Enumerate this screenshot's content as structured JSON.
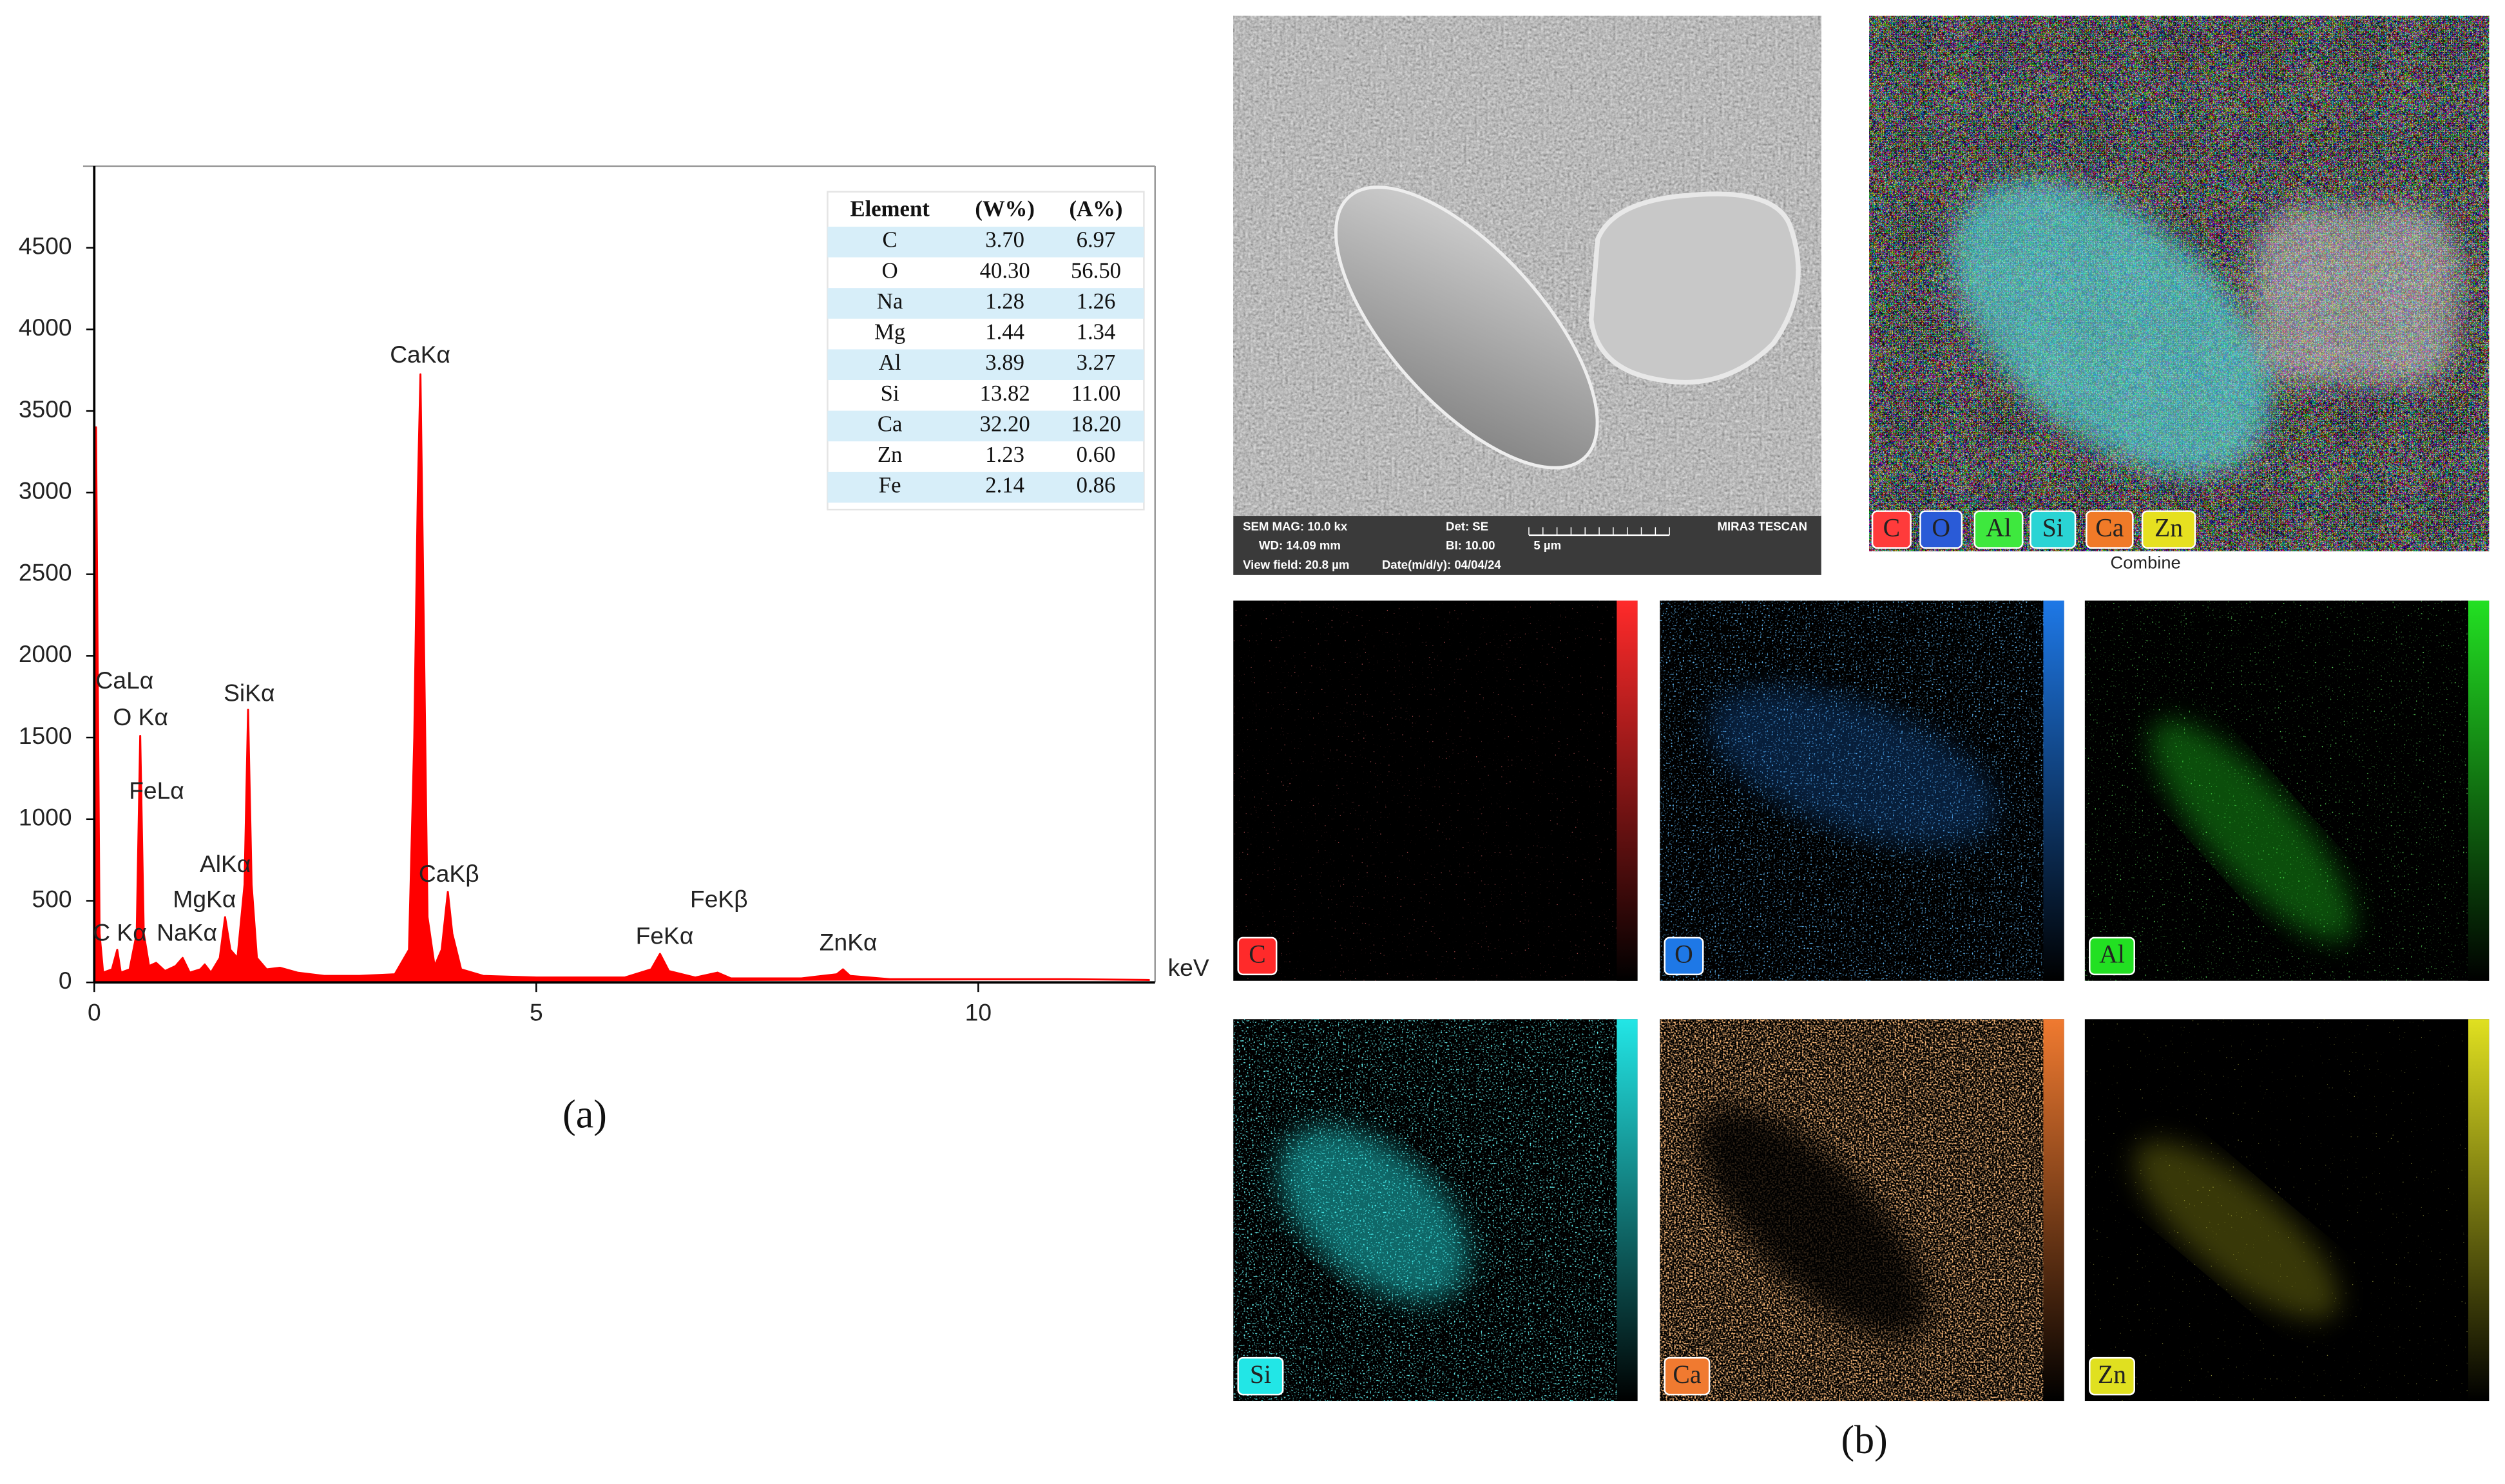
{
  "chart_data": {
    "type": "line",
    "xlabel": "keV",
    "xlim": [
      0,
      12
    ],
    "ylim": [
      0,
      5000
    ],
    "xticks": [
      0,
      5,
      10
    ],
    "yticks": [
      0,
      500,
      1000,
      1500,
      2000,
      2500,
      3000,
      3500,
      4000,
      4500
    ],
    "color": "#ff0000",
    "x": [
      0,
      0.02,
      0.06,
      0.1,
      0.2,
      0.26,
      0.3,
      0.4,
      0.48,
      0.52,
      0.56,
      0.62,
      0.7,
      0.8,
      0.92,
      1.0,
      1.08,
      1.2,
      1.25,
      1.32,
      1.42,
      1.48,
      1.54,
      1.62,
      1.7,
      1.74,
      1.78,
      1.84,
      1.95,
      2.1,
      2.3,
      2.6,
      3.0,
      3.4,
      3.56,
      3.62,
      3.66,
      3.69,
      3.72,
      3.77,
      3.85,
      3.93,
      4.0,
      4.05,
      4.15,
      4.4,
      5.0,
      5.5,
      6.0,
      6.3,
      6.4,
      6.5,
      6.8,
      7.05,
      7.2,
      8.0,
      8.4,
      8.47,
      8.55,
      9.0,
      10.0,
      11.0,
      11.94
    ],
    "values": [
      0,
      3400,
      300,
      60,
      80,
      200,
      60,
      80,
      300,
      1510,
      300,
      100,
      120,
      70,
      100,
      150,
      60,
      80,
      110,
      60,
      150,
      400,
      200,
      150,
      600,
      1670,
      600,
      150,
      80,
      90,
      60,
      40,
      40,
      50,
      200,
      1500,
      3000,
      3725,
      2500,
      400,
      100,
      200,
      555,
      300,
      80,
      40,
      30,
      30,
      30,
      80,
      175,
      70,
      30,
      60,
      25,
      25,
      50,
      80,
      40,
      20,
      20,
      20,
      15
    ],
    "annotations": [
      "CaLα",
      "O Kα",
      "FeLα",
      "C Kα",
      "NaKα",
      "MgKα",
      "AlKα",
      "SiKα",
      "CaKα",
      "CaKβ",
      "FeKα",
      "FeKβ",
      "ZnKα"
    ]
  },
  "table": {
    "header": [
      "Element",
      "(W%)",
      "(A%)"
    ],
    "rows": [
      [
        "C",
        "3.70",
        "6.97"
      ],
      [
        "O",
        "40.30",
        "56.50"
      ],
      [
        "Na",
        "1.28",
        "1.26"
      ],
      [
        "Mg",
        "1.44",
        "1.34"
      ],
      [
        "Al",
        "3.89",
        "3.27"
      ],
      [
        "Si",
        "13.82",
        "11.00"
      ],
      [
        "Ca",
        "32.20",
        "18.20"
      ],
      [
        "Zn",
        "1.23",
        "0.60"
      ],
      [
        "Fe",
        "2.14",
        "0.86"
      ]
    ]
  },
  "sem": {
    "info": [
      "SEM MAG: 10.0 kx",
      "Det: SE",
      "MIRA3 TESCAN",
      "WD: 14.09 mm",
      "BI: 10.00",
      "5 µm",
      "View field: 20.8 µm",
      "Date(m/d/y): 04/04/24"
    ]
  },
  "combine": {
    "title": "Combine",
    "labels": [
      {
        "label": "C",
        "color": "#ff3b3b"
      },
      {
        "label": "O",
        "color": "#2a5bd7"
      },
      {
        "label": "Al",
        "color": "#3ee83e"
      },
      {
        "label": "Si",
        "color": "#2ad4d4"
      },
      {
        "label": "Ca",
        "color": "#f07a28"
      },
      {
        "label": "Zn",
        "color": "#e6e020"
      }
    ]
  },
  "maps": [
    {
      "label": "C",
      "color": "#ff2a2a"
    },
    {
      "label": "O",
      "color": "#1e78e6"
    },
    {
      "label": "Al",
      "color": "#22e022"
    },
    {
      "label": "Si",
      "color": "#22e6e6"
    },
    {
      "label": "Ca",
      "color": "#f07a30"
    },
    {
      "label": "Zn",
      "color": "#e0e020"
    }
  ],
  "captions": {
    "a": "(a)",
    "b": "(b)"
  }
}
